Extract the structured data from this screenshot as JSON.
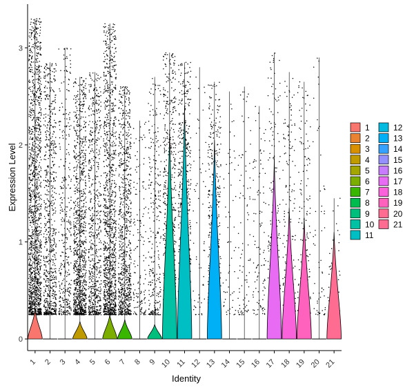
{
  "chart_data": {
    "type": "violin",
    "title": "",
    "xlabel": "Identity",
    "ylabel": "Expression Level",
    "ylim": [
      -0.12,
      3.45
    ],
    "y_ticks": [
      0,
      1,
      2,
      3
    ],
    "grid": false,
    "legend_position": "right",
    "categories": [
      "1",
      "2",
      "3",
      "4",
      "5",
      "6",
      "7",
      "8",
      "9",
      "10",
      "11",
      "12",
      "13",
      "14",
      "15",
      "16",
      "17",
      "18",
      "19",
      "20",
      "21"
    ],
    "colors": [
      "#F8766D",
      "#EA8331",
      "#D89000",
      "#C09B00",
      "#A3A500",
      "#7CAE00",
      "#39B600",
      "#00BB4E",
      "#00BF7D",
      "#00C1A3",
      "#00BFC4",
      "#00BAE0",
      "#00B0F6",
      "#35A2FF",
      "#9590FF",
      "#C77CFF",
      "#E76BF3",
      "#FA62DB",
      "#FF62BC",
      "#FF6C91",
      "#FF6C91"
    ],
    "series": [
      {
        "name": "1",
        "max": 3.3,
        "violin_height": 0.3
      },
      {
        "name": "2",
        "max": 2.85,
        "violin_height": 0.0
      },
      {
        "name": "3",
        "max": 3.0,
        "violin_height": 0.0
      },
      {
        "name": "4",
        "max": 2.7,
        "violin_height": 0.18
      },
      {
        "name": "5",
        "max": 2.75,
        "violin_height": 0.0
      },
      {
        "name": "6",
        "max": 3.25,
        "violin_height": 0.25
      },
      {
        "name": "7",
        "max": 2.6,
        "violin_height": 0.2
      },
      {
        "name": "8",
        "max": 2.25,
        "violin_height": 0.0
      },
      {
        "name": "9",
        "max": 2.7,
        "violin_height": 0.15
      },
      {
        "name": "10",
        "max": 2.95,
        "violin_height": 2.15
      },
      {
        "name": "11",
        "max": 2.85,
        "violin_height": 2.4
      },
      {
        "name": "12",
        "max": 2.8,
        "violin_height": 0.0
      },
      {
        "name": "13",
        "max": 2.65,
        "violin_height": 2.05
      },
      {
        "name": "14",
        "max": 2.55,
        "violin_height": 0.0
      },
      {
        "name": "15",
        "max": 2.6,
        "violin_height": 0.0
      },
      {
        "name": "16",
        "max": 2.4,
        "violin_height": 0.0
      },
      {
        "name": "17",
        "max": 2.95,
        "violin_height": 1.85
      },
      {
        "name": "18",
        "max": 2.75,
        "violin_height": 1.35
      },
      {
        "name": "19",
        "max": 2.65,
        "violin_height": 1.25
      },
      {
        "name": "20",
        "max": 2.9,
        "violin_height": 0.0
      },
      {
        "name": "21",
        "max": 1.45,
        "violin_height": 1.1
      }
    ]
  }
}
